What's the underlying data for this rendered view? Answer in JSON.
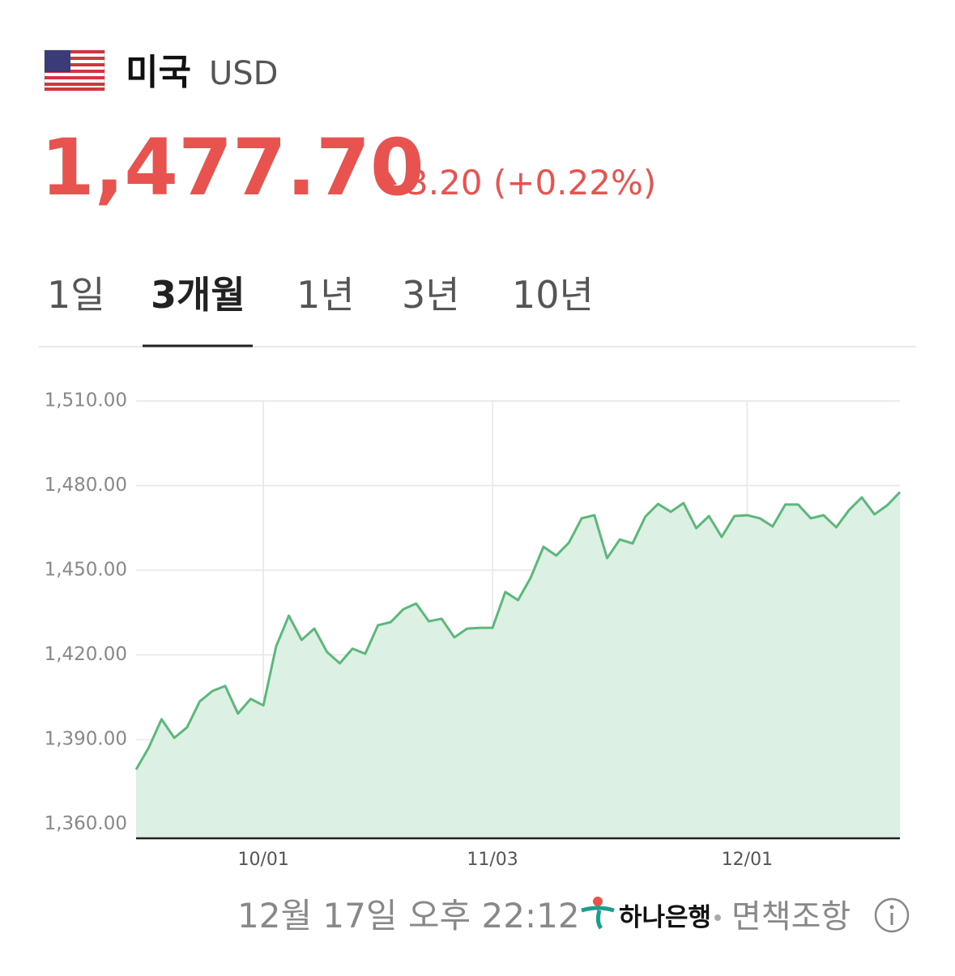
{
  "header": {
    "country": "미국",
    "currency": "USD",
    "price": "1,477.70",
    "change": "3.20 (+0.22%)"
  },
  "tabs": [
    "1일",
    "3개월",
    "1년",
    "3년",
    "10년"
  ],
  "chart_data": {
    "type": "area",
    "categories": [
      null,
      null,
      null,
      null,
      null,
      null,
      null,
      null,
      null,
      null,
      "10/01",
      null,
      null,
      null,
      null,
      null,
      null,
      null,
      null,
      null,
      null,
      null,
      null,
      null,
      null,
      null,
      null,
      null,
      "11/03",
      null,
      null,
      null,
      null,
      null,
      null,
      null,
      null,
      null,
      null,
      null,
      null,
      null,
      null,
      null,
      null,
      null,
      null,
      null,
      "12/01",
      null,
      null,
      null,
      null,
      null,
      null,
      null,
      null,
      null,
      null,
      null,
      null
    ],
    "series": [
      {
        "color": "#5cb87a",
        "fill": "#dcf0e3",
        "values": [
          1379.4,
          1387.2,
          1397.2,
          1390.6,
          1394.3,
          1403.5,
          1407.2,
          1409.0,
          1399.2,
          1404.4,
          1402.1,
          1423.0,
          1433.9,
          1425.3,
          1429.3,
          1421.0,
          1417.0,
          1422.2,
          1420.4,
          1430.5,
          1431.6,
          1436.2,
          1438.2,
          1431.9,
          1432.8,
          1426.2,
          1429.3,
          1429.6,
          1429.6,
          1442.3,
          1439.4,
          1447.4,
          1458.3,
          1455.2,
          1459.8,
          1468.4,
          1469.5,
          1454.3,
          1460.9,
          1459.5,
          1469.0,
          1473.5,
          1470.7,
          1473.8,
          1464.9,
          1469.2,
          1461.8,
          1469.2,
          1469.5,
          1468.4,
          1465.5,
          1473.3,
          1473.3,
          1468.4,
          1469.5,
          1465.2,
          1471.3,
          1475.8,
          1469.8,
          1473.0,
          1477.7
        ]
      }
    ],
    "ylim": [
      1355,
      1510
    ],
    "yticks": [
      {
        "value": 1360,
        "label": "1,360.00"
      },
      {
        "value": 1390,
        "label": "1,390.00"
      },
      {
        "value": 1420,
        "label": "1,420.00"
      },
      {
        "value": 1450,
        "label": "1,450.00"
      },
      {
        "value": 1480,
        "label": "1,480.00"
      },
      {
        "value": 1510,
        "label": "1,510.00"
      }
    ],
    "grid": true
  },
  "footer": {
    "timestamp": "12월 17일 오후 22:12",
    "bank": "하나은행",
    "disclaimer": "면책조항"
  }
}
